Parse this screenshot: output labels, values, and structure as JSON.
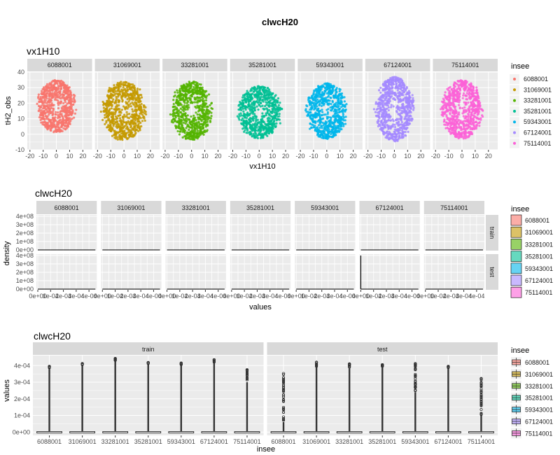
{
  "figure_title": "clwcH20",
  "chart_data": [
    {
      "type": "scatter",
      "title": "vx1H10",
      "xlabel": "vx1H10",
      "ylabel": "tH2_obs",
      "xlim": [
        -22,
        27
      ],
      "ylim": [
        -10,
        40
      ],
      "x_ticks": [
        -20,
        -10,
        0,
        10,
        20
      ],
      "y_ticks": [
        -10,
        0,
        10,
        20,
        30,
        40
      ],
      "x_tick_labels": [
        "-20",
        "-10",
        "0",
        "10",
        "20"
      ],
      "y_tick_labels": [
        "-10",
        "0",
        "10",
        "20",
        "30",
        "40"
      ],
      "grid": true,
      "facets": [
        "6088001",
        "31069001",
        "33281001",
        "35281001",
        "59343001",
        "67124001",
        "75114001"
      ],
      "series": [
        {
          "name": "6088001",
          "color": "#F8766D",
          "cx": 0,
          "cy": 18,
          "rx": 13,
          "ry": 17
        },
        {
          "name": "31069001",
          "color": "#C49A00",
          "cx": 0,
          "cy": 15,
          "rx": 15,
          "ry": 19
        },
        {
          "name": "33281001",
          "color": "#53B400",
          "cx": 0,
          "cy": 15,
          "rx": 14,
          "ry": 19
        },
        {
          "name": "35281001",
          "color": "#00C094",
          "cx": 0,
          "cy": 14,
          "rx": 15,
          "ry": 17
        },
        {
          "name": "59343001",
          "color": "#00B6EB",
          "cx": 0,
          "cy": 15,
          "rx": 14,
          "ry": 18
        },
        {
          "name": "67124001",
          "color": "#A58AFF",
          "cx": 0,
          "cy": 16,
          "rx": 13,
          "ry": 21
        },
        {
          "name": "75114001",
          "color": "#FB61D7",
          "cx": 0,
          "cy": 16,
          "rx": 14,
          "ry": 19
        }
      ],
      "legend": {
        "title": "insee",
        "position": "right"
      }
    },
    {
      "type": "line",
      "title": "clwcH20",
      "xlabel": "values",
      "ylabel": "density",
      "xlim": [
        0,
        0.00045
      ],
      "ylim": [
        0,
        400000000
      ],
      "x_ticks": [
        0,
        0.0001,
        0.0002,
        0.0003,
        0.0004
      ],
      "x_tick_labels": [
        "0e+00",
        "1e-04",
        "2e-04",
        "3e-04",
        "4e-04"
      ],
      "y_ticks": [
        0,
        100000000,
        200000000,
        300000000,
        400000000
      ],
      "y_tick_labels": [
        "0e+00",
        "1e+08",
        "2e+08",
        "3e+08",
        "4e+08"
      ],
      "grid": true,
      "facets_cols": [
        "6088001",
        "31069001",
        "33281001",
        "35281001",
        "59343001",
        "67124001",
        "75114001"
      ],
      "facets_rows": [
        "train",
        "test"
      ],
      "spike": {
        "row": "test",
        "col": "67124001",
        "x": 0,
        "y": 400000000
      },
      "legend": {
        "title": "insee",
        "position": "right"
      }
    },
    {
      "type": "box",
      "title": "clwcH20",
      "xlabel": "insee",
      "ylabel": "values",
      "ylim": [
        -2e-05,
        0.00046
      ],
      "y_ticks": [
        0,
        0.0001,
        0.0002,
        0.0003,
        0.0004
      ],
      "y_tick_labels": [
        "0e+00",
        "1e-04",
        "2e-04",
        "3e-04",
        "4e-04"
      ],
      "categories": [
        "6088001",
        "31069001",
        "33281001",
        "35281001",
        "59343001",
        "67124001",
        "75114001"
      ],
      "facets": [
        "train",
        "test"
      ],
      "outlier_max": {
        "train": [
          0.000395,
          0.000412,
          0.000443,
          0.000418,
          0.000415,
          0.000435,
          0.000375
        ],
        "test": [
          0.000352,
          0.00042,
          0.00041,
          0.000405,
          0.000412,
          0.000395,
          0.000322
        ]
      },
      "dense_max": {
        "train": [
          0.000385,
          0.000405,
          0.00043,
          0.00041,
          0.000405,
          0.00042,
          0.0003
        ],
        "test": [
          6e-05,
          0.000395,
          0.000385,
          0.000395,
          0.00024,
          0.000385,
          0.0001
        ]
      },
      "grid": true,
      "legend": {
        "title": "insee",
        "position": "right"
      }
    }
  ],
  "legend_colors": [
    "#F8766D",
    "#C49A00",
    "#53B400",
    "#00C094",
    "#00B6EB",
    "#A58AFF",
    "#FB61D7"
  ]
}
